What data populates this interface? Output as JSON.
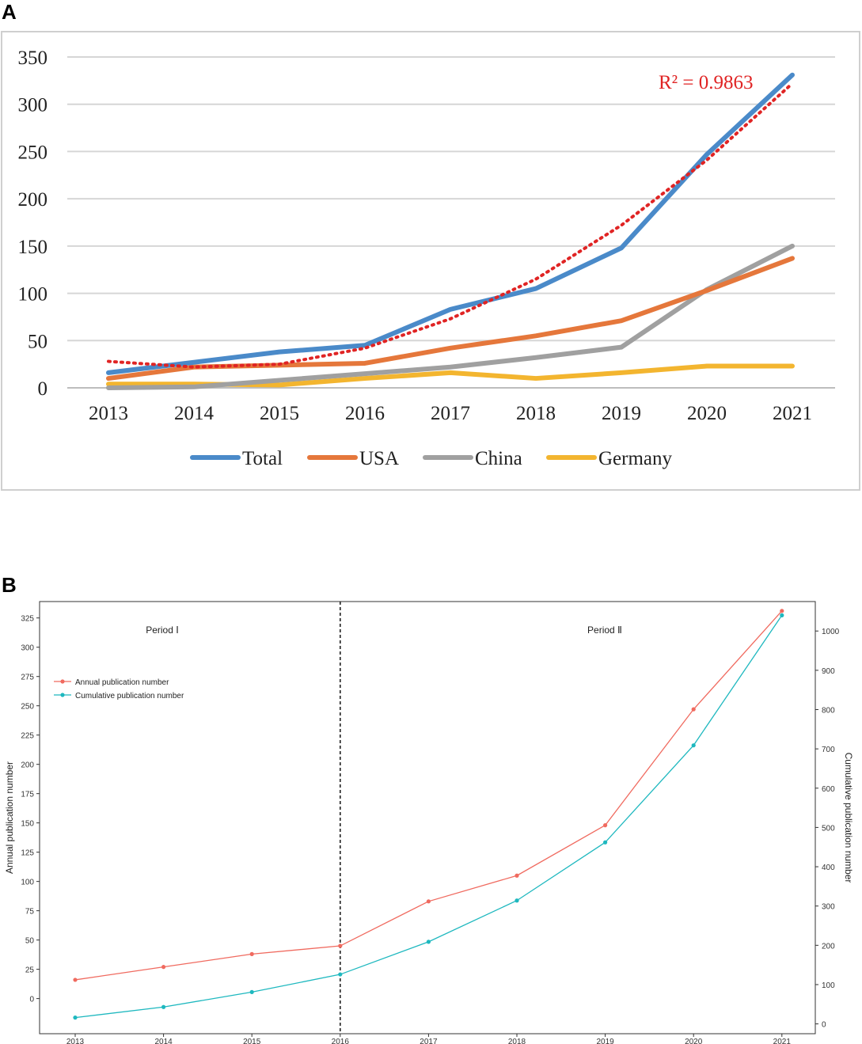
{
  "panels": [
    {
      "label": "A"
    },
    {
      "label": "B"
    }
  ],
  "chart_data": [
    {
      "type": "line",
      "title": "",
      "xlabel": "",
      "ylabel": "",
      "categories": [
        "2013",
        "2014",
        "2015",
        "2016",
        "2017",
        "2018",
        "2019",
        "2020",
        "2021"
      ],
      "ylim": [
        0,
        350
      ],
      "yticks": [
        0,
        50,
        100,
        150,
        200,
        250,
        300,
        350
      ],
      "grid": true,
      "legend_position": "bottom",
      "series": [
        {
          "name": "Total",
          "color": "#4a8ac9",
          "values": [
            16,
            27,
            38,
            45,
            83,
            105,
            148,
            247,
            331
          ]
        },
        {
          "name": "USA",
          "color": "#e5773b",
          "values": [
            10,
            22,
            24,
            26,
            42,
            55,
            71,
            103,
            137
          ]
        },
        {
          "name": "China",
          "color": "#a0a0a0",
          "values": [
            0,
            1,
            8,
            15,
            22,
            32,
            43,
            104,
            150
          ]
        },
        {
          "name": "Germany",
          "color": "#f3b52f",
          "values": [
            4,
            4,
            3,
            10,
            16,
            10,
            16,
            23,
            23
          ]
        }
      ],
      "trendline": {
        "color": "#e02424",
        "values": [
          28,
          22,
          25,
          42,
          73,
          115,
          172,
          241,
          322
        ],
        "annotation": "R² = 0.9863"
      }
    },
    {
      "type": "line",
      "title": "",
      "xlabel": "",
      "ylabel": "Annual publication number",
      "y2label": "Cumulative publication number",
      "categories": [
        "2013",
        "2014",
        "2015",
        "2016",
        "2017",
        "2018",
        "2019",
        "2020",
        "2021"
      ],
      "ylim": [
        -30,
        339
      ],
      "yticks": [
        0,
        25,
        50,
        75,
        100,
        125,
        150,
        175,
        200,
        225,
        250,
        275,
        300,
        325
      ],
      "y2lim": [
        -25,
        1075
      ],
      "y2ticks": [
        0,
        100,
        200,
        300,
        400,
        500,
        600,
        700,
        800,
        900,
        1000
      ],
      "legend_position": "upper-left",
      "period_divider": "2016",
      "periods": [
        "Period Ⅰ",
        "Period Ⅱ"
      ],
      "series": [
        {
          "name": "Annual publication number",
          "axis": "left",
          "color": "#f06a5f",
          "values": [
            16,
            27,
            38,
            45,
            83,
            105,
            148,
            247,
            331
          ]
        },
        {
          "name": "Cumulative publication number",
          "axis": "right",
          "color": "#1eb8bf",
          "values": [
            16,
            43,
            81,
            126,
            209,
            314,
            462,
            709,
            1040
          ]
        }
      ]
    }
  ]
}
